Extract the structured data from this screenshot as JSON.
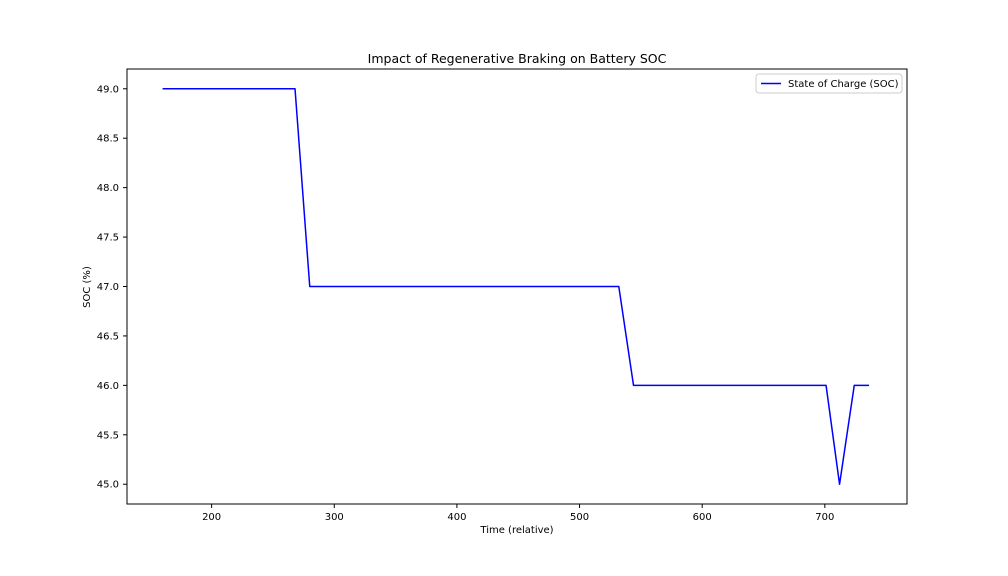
{
  "chart_data": {
    "type": "line",
    "title": "Impact of Regenerative Braking on Battery SOC",
    "xlabel": "Time (relative)",
    "ylabel": "SOC (%)",
    "xlim": [
      131,
      767
    ],
    "ylim": [
      44.8,
      49.2
    ],
    "xticks": [
      200,
      300,
      400,
      500,
      600,
      700
    ],
    "yticks": [
      45.0,
      45.5,
      46.0,
      46.5,
      47.0,
      47.5,
      48.0,
      48.5,
      49.0
    ],
    "grid": false,
    "legend_position": "top-right",
    "series": [
      {
        "name": "State of Charge (SOC)",
        "color": "#0000ff",
        "x": [
          160,
          268,
          280,
          532,
          544,
          701,
          712,
          724,
          736
        ],
        "y": [
          49.0,
          49.0,
          47.0,
          47.0,
          46.0,
          46.0,
          45.0,
          46.0,
          46.0
        ]
      }
    ]
  }
}
